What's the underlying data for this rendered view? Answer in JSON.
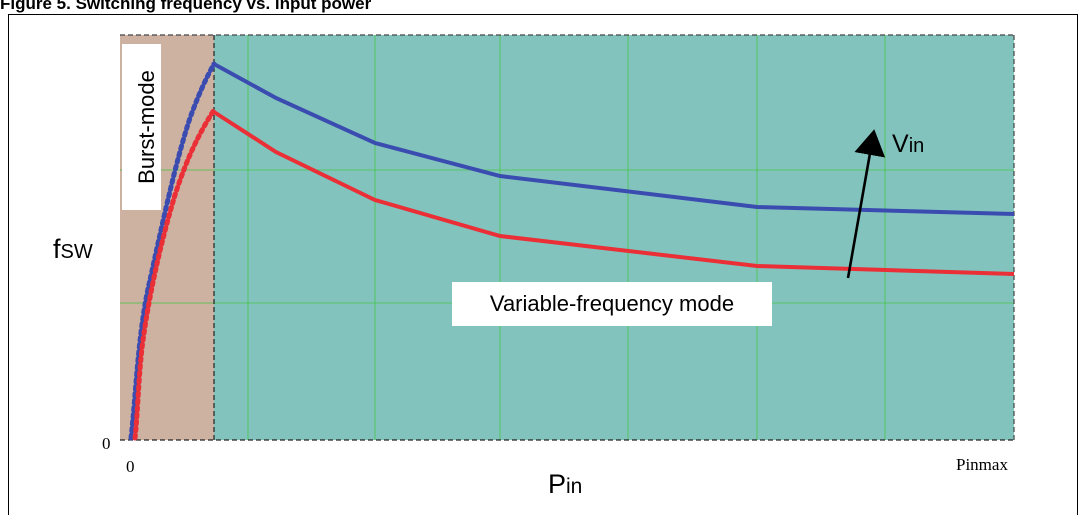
{
  "figure": {
    "title": "Figure 5. Switching frequency vs. input power"
  },
  "labels": {
    "burst_region": "Burst-mode",
    "variable_region": "Variable-frequency mode",
    "y_axis": "fsw",
    "y_axis_main": "f",
    "y_axis_sub": "SW",
    "x_axis_main": "P",
    "x_axis_sub": "in",
    "x_origin": "0",
    "x_end": "Pinmax",
    "y_origin": "0",
    "arrow_main": "V",
    "arrow_sub": "in"
  },
  "colors": {
    "burst_fill": "#cdb1a1",
    "variable_fill": "#82c3bd",
    "grid": "#46c646",
    "high_vin_curve": "#3b4cb0",
    "low_vin_curve": "#ea2f37"
  },
  "chart_data": {
    "type": "line",
    "xlabel": "Pin",
    "ylabel": "fsw",
    "x_ticks": [
      "0",
      "Pinmax"
    ],
    "y_ticks": [
      "0"
    ],
    "annotation": "Vin increasing (arrow)"
  }
}
